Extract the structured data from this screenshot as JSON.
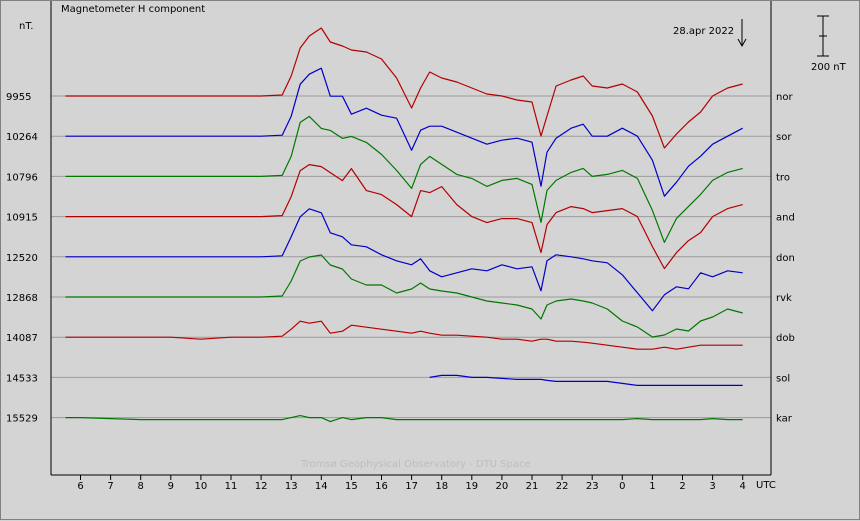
{
  "chart_data": {
    "type": "line",
    "title": "Magnetometer H component",
    "ylabel": "nT.",
    "date_label": "28.apr 2022",
    "scale_label": "200 nT",
    "xlabel": "UTC",
    "watermark": "Tromsø Geophysical Observatory - DTU Space",
    "x_ticks": [
      "6",
      "7",
      "8",
      "9",
      "10",
      "11",
      "12",
      "13",
      "14",
      "15",
      "16",
      "17",
      "18",
      "19",
      "20",
      "21",
      "22",
      "23",
      "0",
      "1",
      "2",
      "3",
      "4"
    ],
    "stations": [
      {
        "name": "nor",
        "baseline": "9955",
        "color": "#b40000"
      },
      {
        "name": "sor",
        "baseline": "10264",
        "color": "#0000c8"
      },
      {
        "name": "tro",
        "baseline": "10796",
        "color": "#007800"
      },
      {
        "name": "and",
        "baseline": "10915",
        "color": "#b40000"
      },
      {
        "name": "don",
        "baseline": "12520",
        "color": "#0000c8"
      },
      {
        "name": "rvk",
        "baseline": "12868",
        "color": "#007800"
      },
      {
        "name": "dob",
        "baseline": "14087",
        "color": "#b40000"
      },
      {
        "name": "sol",
        "baseline": "14533",
        "color": "#0000c8"
      },
      {
        "name": "kar",
        "baseline": "15529",
        "color": "#007800"
      }
    ],
    "x": [
      5.5,
      6,
      7,
      8,
      9,
      10,
      11,
      12,
      12.7,
      13,
      13.3,
      13.6,
      14,
      14.3,
      14.7,
      15,
      15.5,
      16,
      16.5,
      17,
      17.3,
      17.6,
      18,
      18.5,
      19,
      19.5,
      20,
      20.5,
      21,
      21.3,
      21.5,
      21.8,
      22.3,
      22.7,
      23,
      23.5,
      24,
      24.5,
      25,
      25.4,
      25.8,
      26.2,
      26.6,
      27,
      27.5,
      28
    ],
    "series_nt": [
      [
        0,
        0,
        0,
        0,
        0,
        0,
        0,
        0,
        5,
        100,
        240,
        300,
        340,
        270,
        250,
        230,
        220,
        185,
        90,
        -60,
        40,
        120,
        90,
        70,
        40,
        10,
        0,
        -20,
        -30,
        -200,
        -100,
        50,
        80,
        100,
        50,
        40,
        60,
        20,
        -100,
        -260,
        -190,
        -130,
        -80,
        0,
        40,
        60
      ],
      [
        0,
        0,
        0,
        0,
        0,
        0,
        0,
        0,
        5,
        100,
        260,
        310,
        340,
        200,
        200,
        110,
        140,
        105,
        90,
        -70,
        30,
        50,
        50,
        20,
        -10,
        -40,
        -20,
        -10,
        -30,
        -250,
        -80,
        -10,
        40,
        60,
        0,
        0,
        40,
        0,
        -120,
        -300,
        -230,
        -150,
        -100,
        -40,
        0,
        40
      ],
      [
        0,
        0,
        0,
        0,
        0,
        0,
        0,
        0,
        5,
        100,
        270,
        300,
        240,
        230,
        190,
        200,
        170,
        110,
        30,
        -60,
        60,
        100,
        60,
        10,
        -10,
        -50,
        -20,
        -10,
        -40,
        -230,
        -70,
        -20,
        20,
        40,
        0,
        10,
        30,
        -10,
        -170,
        -330,
        -210,
        -150,
        -90,
        -20,
        20,
        40
      ],
      [
        0,
        0,
        0,
        0,
        0,
        0,
        0,
        0,
        5,
        100,
        230,
        260,
        250,
        220,
        180,
        240,
        130,
        110,
        60,
        0,
        130,
        120,
        150,
        60,
        0,
        -30,
        -10,
        -10,
        -30,
        -180,
        -40,
        20,
        50,
        40,
        20,
        30,
        40,
        0,
        -150,
        -260,
        -180,
        -120,
        -80,
        0,
        40,
        60
      ],
      [
        0,
        0,
        0,
        0,
        0,
        0,
        0,
        0,
        5,
        100,
        200,
        240,
        220,
        120,
        100,
        60,
        50,
        10,
        -20,
        -40,
        -10,
        -70,
        -100,
        -80,
        -60,
        -70,
        -40,
        -60,
        -50,
        -170,
        -20,
        10,
        0,
        -10,
        -20,
        -30,
        -90,
        -180,
        -270,
        -190,
        -150,
        -160,
        -80,
        -100,
        -70,
        -80
      ],
      [
        0,
        0,
        0,
        0,
        0,
        0,
        0,
        0,
        5,
        80,
        180,
        200,
        210,
        160,
        140,
        90,
        60,
        60,
        20,
        40,
        70,
        40,
        30,
        20,
        0,
        -20,
        -30,
        -40,
        -60,
        -110,
        -40,
        -20,
        -10,
        -20,
        -30,
        -60,
        -120,
        -150,
        -200,
        -190,
        -160,
        -170,
        -120,
        -100,
        -60,
        -80
      ],
      [
        0,
        0,
        0,
        0,
        0,
        -10,
        0,
        0,
        5,
        40,
        80,
        70,
        80,
        20,
        30,
        60,
        50,
        40,
        30,
        20,
        30,
        20,
        10,
        10,
        5,
        0,
        -10,
        -10,
        -20,
        -10,
        -10,
        -20,
        -20,
        -25,
        -30,
        -40,
        -50,
        -60,
        -60,
        -50,
        -60,
        -50,
        -40,
        -40,
        -40,
        -40
      ],
      [
        null,
        null,
        null,
        null,
        null,
        null,
        null,
        null,
        null,
        null,
        null,
        null,
        null,
        null,
        null,
        null,
        null,
        null,
        null,
        null,
        null,
        0,
        10,
        10,
        0,
        0,
        -5,
        -10,
        -10,
        -10,
        -15,
        -20,
        -20,
        -20,
        -20,
        -20,
        -30,
        -40,
        -40,
        -40,
        -40,
        -40,
        -40,
        -40,
        -40,
        -40
      ],
      [
        0,
        0,
        -5,
        -10,
        -10,
        -10,
        -10,
        -10,
        -10,
        0,
        10,
        0,
        0,
        -20,
        0,
        -10,
        0,
        0,
        -10,
        -10,
        -10,
        -10,
        -10,
        -10,
        -10,
        -10,
        -10,
        -10,
        -10,
        -10,
        -10,
        -10,
        -10,
        -10,
        -10,
        -10,
        -10,
        -5,
        -10,
        -10,
        -10,
        -10,
        -10,
        -5,
        -10,
        -10
      ]
    ]
  }
}
